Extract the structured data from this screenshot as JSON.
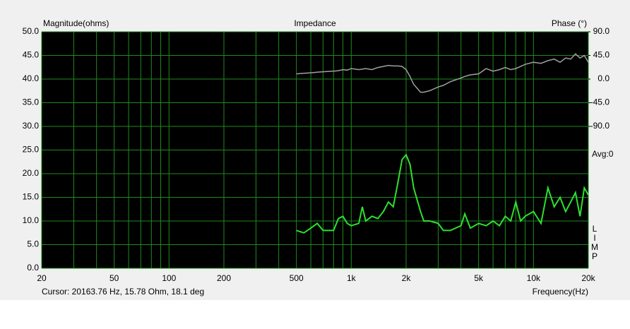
{
  "chart_data": {
    "type": "line",
    "title": "Impedance",
    "ylabel": "Magnitude(ohms)",
    "y2label": "Phase (°)",
    "xlabel": "Frequency(Hz)",
    "cursor": "Cursor: 20163.76 Hz, 15.78 Ohm, 18.1 deg",
    "avg": "Avg:0",
    "side_letters": [
      "L",
      "I",
      "M",
      "P"
    ],
    "xscale": "log",
    "xlim": [
      20,
      20000
    ],
    "xticks": [
      20,
      50,
      100,
      200,
      500,
      {
        "value": 1000,
        "label": "1k"
      },
      {
        "value": 2000,
        "label": "2k"
      },
      {
        "value": 5000,
        "label": "5k"
      },
      {
        "value": 10000,
        "label": "10k"
      },
      {
        "value": 20000,
        "label": "20k"
      }
    ],
    "xminor": [
      30,
      40,
      60,
      70,
      80,
      90,
      300,
      400,
      600,
      700,
      800,
      900,
      3000,
      4000,
      6000,
      7000,
      8000,
      9000
    ],
    "ylim": [
      0,
      50
    ],
    "yticks": [
      {
        "value": 0,
        "label": "0.0"
      },
      {
        "value": 5,
        "label": "5.0"
      },
      {
        "value": 10,
        "label": "10.0"
      },
      {
        "value": 15,
        "label": "15.0"
      },
      {
        "value": 20,
        "label": "20.0"
      },
      {
        "value": 25,
        "label": "25.0"
      },
      {
        "value": 30,
        "label": "30.0"
      },
      {
        "value": 35,
        "label": "35.0"
      },
      {
        "value": 40,
        "label": "40.0"
      },
      {
        "value": 45,
        "label": "45.0"
      },
      {
        "value": 50,
        "label": "50.0"
      }
    ],
    "y2lim": [
      -360,
      90
    ],
    "y2ticks": [
      {
        "value": -90,
        "label": "-90.0"
      },
      {
        "value": -45,
        "label": "-45.0"
      },
      {
        "value": 0,
        "label": "0.0"
      },
      {
        "value": 45,
        "label": "45.0"
      },
      {
        "value": 90,
        "label": "90.0"
      }
    ],
    "grid": true,
    "grid_color": "#1f8a1f",
    "background": "#000000",
    "x": [
      500,
      550,
      600,
      650,
      700,
      800,
      850,
      900,
      950,
      1000,
      1100,
      1150,
      1200,
      1300,
      1400,
      1500,
      1600,
      1700,
      1800,
      1900,
      2000,
      2100,
      2200,
      2400,
      2500,
      2700,
      3000,
      3200,
      3500,
      4000,
      4200,
      4500,
      5000,
      5500,
      6000,
      6500,
      7000,
      7500,
      8000,
      8500,
      9000,
      10000,
      11000,
      12000,
      13000,
      14000,
      15000,
      16000,
      17000,
      18000,
      19000,
      20000
    ],
    "series": [
      {
        "name": "Magnitude",
        "color": "#2ee02e",
        "values": [
          8,
          7.5,
          8.5,
          9.5,
          8,
          8,
          10.5,
          11,
          9.5,
          9,
          9.5,
          13,
          10,
          11,
          10.5,
          12,
          14,
          13,
          18,
          23,
          24,
          22,
          17,
          12,
          10,
          10,
          9.5,
          8,
          8,
          9,
          11.5,
          8.5,
          9.5,
          9,
          10,
          9,
          11,
          10,
          14,
          10,
          11,
          12,
          9.5,
          17,
          13,
          15,
          12,
          14,
          16,
          11,
          17,
          15.5
        ]
      },
      {
        "name": "Phase",
        "color": "#a0a0a0",
        "axis": "y2",
        "values": [
          10,
          11,
          12,
          13,
          14,
          15,
          16,
          18,
          17,
          20,
          18,
          19,
          20,
          18,
          22,
          24,
          26,
          25,
          25,
          24,
          18,
          5,
          -10,
          -25,
          -25,
          -22,
          -15,
          -12,
          -5,
          2,
          5,
          8,
          10,
          20,
          15,
          18,
          22,
          18,
          20,
          24,
          28,
          32,
          30,
          35,
          38,
          32,
          40,
          38,
          48,
          40,
          45,
          32
        ]
      }
    ]
  }
}
